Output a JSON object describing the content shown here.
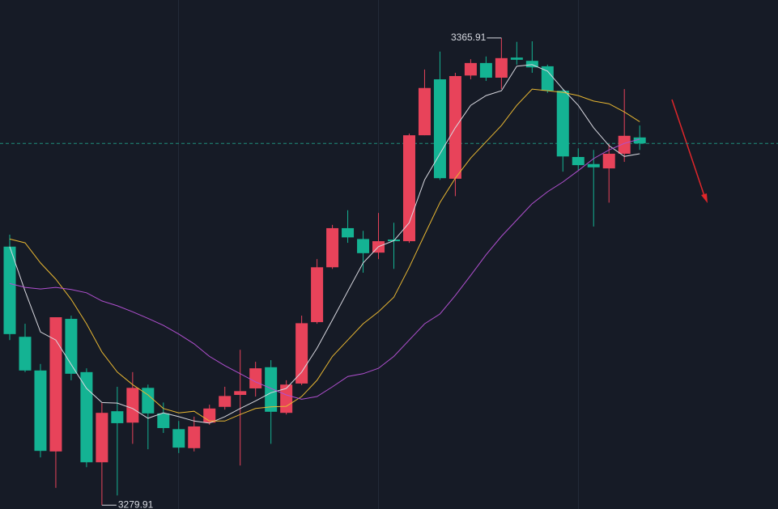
{
  "chart_data": {
    "type": "candlestick",
    "categories": [
      null,
      null,
      null,
      null,
      null,
      null,
      null,
      null,
      null,
      null,
      null,
      null,
      null,
      null,
      null,
      null,
      null,
      null,
      null,
      null,
      null,
      null,
      null,
      null,
      null,
      null,
      null,
      null,
      null,
      null,
      null,
      null,
      null,
      null,
      null,
      null,
      null,
      null,
      null,
      null,
      null,
      null
    ],
    "open": [
      3327.5,
      3310.9,
      3304.7,
      3289.8,
      3314.2,
      3304.4,
      3287.8,
      3297.2,
      3295.1,
      3301.5,
      3296.8,
      3293.9,
      3290.4,
      3295.1,
      3298.0,
      3300.2,
      3301.4,
      3305.3,
      3296.9,
      3302.3,
      3313.6,
      3323.7,
      3330.9,
      3328.9,
      3326.4,
      3328.8,
      3328.5,
      3348.0,
      3358.3,
      3340.0,
      3359.0,
      3361.3,
      3358.6,
      3362.3,
      3361.7,
      3360.7,
      3356.2,
      3344.0,
      3342.7,
      3341.9,
      3344.6,
      3347.6
    ],
    "high": [
      3329.7,
      3313.3,
      3305.9,
      3314.5,
      3314.8,
      3305.1,
      3298.7,
      3301.7,
      3304.4,
      3302.1,
      3298.8,
      3295.4,
      3296.2,
      3298.4,
      3301.7,
      3308.5,
      3306.3,
      3306.6,
      3302.9,
      3314.8,
      3325.2,
      3331.5,
      3334.2,
      3330.4,
      3333.7,
      3331.9,
      3348.3,
      3360.1,
      3363.4,
      3359.5,
      3362.0,
      3362.5,
      3365.91,
      3365.2,
      3365.3,
      3361.0,
      3356.5,
      3345.6,
      3345.3,
      3346.4,
      3356.5,
      3349.8
    ],
    "low": [
      3310.3,
      3304.4,
      3288.7,
      3283.1,
      3302.9,
      3286.9,
      3279.91,
      3281.7,
      3291.2,
      3290.2,
      3293.2,
      3289.5,
      3289.8,
      3294.7,
      3297.5,
      3287.2,
      3299.9,
      3291.2,
      3296.6,
      3302.0,
      3313.3,
      3323.4,
      3328.2,
      3322.7,
      3325.2,
      3323.4,
      3328.2,
      3348.0,
      3339.8,
      3336.8,
      3358.3,
      3358.0,
      3356.5,
      3361.0,
      3359.5,
      3355.8,
      3341.3,
      3341.6,
      3331.2,
      3335.6,
      3343.1,
      3345.3
    ],
    "close": [
      3311.4,
      3304.7,
      3289.9,
      3314.5,
      3304.1,
      3287.8,
      3296.9,
      3295.0,
      3301.5,
      3296.8,
      3294.1,
      3290.5,
      3294.4,
      3297.7,
      3300.0,
      3300.9,
      3305.1,
      3297.1,
      3302.1,
      3313.4,
      3323.7,
      3330.9,
      3329.2,
      3326.3,
      3328.5,
      3328.5,
      3348.0,
      3356.7,
      3340.1,
      3358.9,
      3361.3,
      3358.6,
      3362.2,
      3361.9,
      3360.5,
      3356.2,
      3344.1,
      3342.5,
      3342.1,
      3344.6,
      3347.9,
      3346.5
    ],
    "up_color": "#e8435a",
    "down_color": "#14b393",
    "series": [
      {
        "color": "#d9d9e0",
        "values": [
          3327.5,
          3319.3,
          3311.8,
          3310.3,
          3305.8,
          3301.4,
          3298.8,
          3298.7,
          3297.7,
          3295.9,
          3296.9,
          3296.2,
          3295.4,
          3295.0,
          3296.2,
          3297.7,
          3299.1,
          3300.6,
          3301.4,
          3304.4,
          3308.8,
          3314.0,
          3319.3,
          3324.5,
          3327.5,
          3328.6,
          3331.9,
          3339.8,
          3344.6,
          3349.4,
          3353.5,
          3355.3,
          3356.2,
          3360.7,
          3361.0,
          3359.8,
          3356.5,
          3353.5,
          3349.4,
          3346.1,
          3344.1,
          3344.6
        ]
      },
      {
        "color": "#e8b732",
        "values": [
          3328.9,
          3328.2,
          3324.5,
          3321.5,
          3317.8,
          3313.3,
          3308.1,
          3304.4,
          3302.1,
          3300.2,
          3297.7,
          3296.9,
          3297.2,
          3295.4,
          3295.4,
          3296.6,
          3297.7,
          3298.0,
          3298.1,
          3299.9,
          3302.9,
          3307.3,
          3310.3,
          3313.3,
          3315.5,
          3318.2,
          3323.7,
          3329.7,
          3335.6,
          3340.1,
          3343.8,
          3346.8,
          3349.8,
          3353.5,
          3356.5,
          3356.2,
          3355.9,
          3355.3,
          3354.3,
          3353.8,
          3352.3,
          3350.5
        ]
      },
      {
        "color": "#b150d0",
        "values": [
          3320.7,
          3320.0,
          3319.7,
          3320.0,
          3319.6,
          3319.0,
          3317.5,
          3316.6,
          3315.5,
          3314.3,
          3313.0,
          3311.4,
          3309.6,
          3307.3,
          3305.6,
          3304.1,
          3302.6,
          3301.4,
          3300.2,
          3299.4,
          3299.9,
          3301.7,
          3303.6,
          3304.1,
          3305.1,
          3307.3,
          3310.3,
          3313.3,
          3315.1,
          3318.5,
          3322.2,
          3326.0,
          3329.4,
          3332.4,
          3335.4,
          3337.6,
          3339.4,
          3341.5,
          3343.7,
          3345.3,
          3346.5,
          3347.3
        ]
      }
    ],
    "last_price": 3346.5,
    "annotations": [
      3365.91,
      3279.91
    ],
    "ylim": [
      3279.2,
      3372.9
    ]
  }
}
